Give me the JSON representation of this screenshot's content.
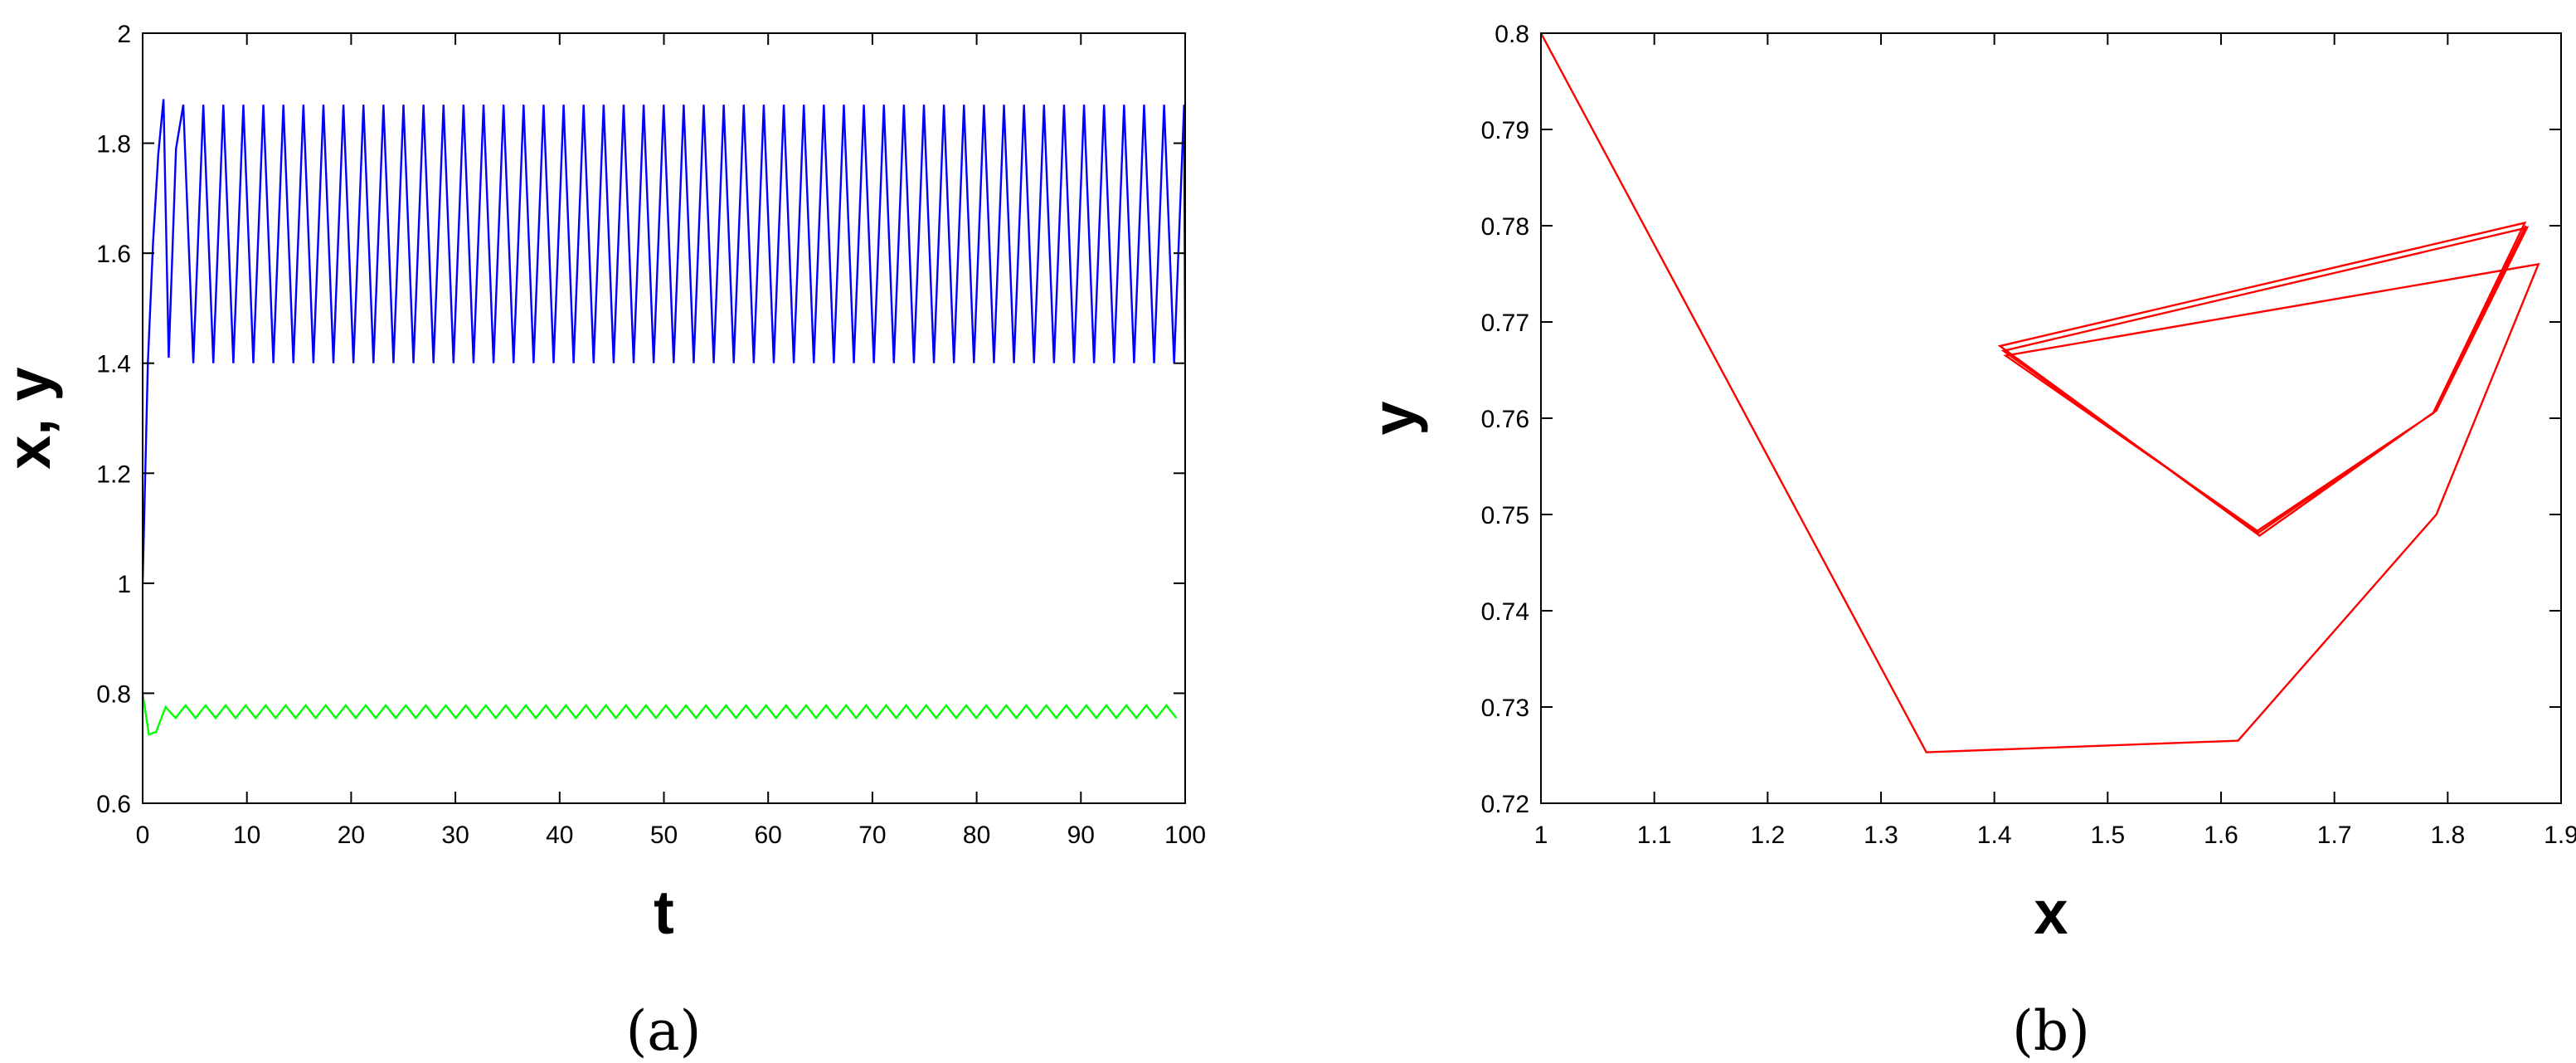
{
  "chart_data": [
    {
      "type": "line",
      "panel_label": "(a)",
      "xlabel": "t",
      "ylabel": "x, y",
      "xlim": [
        0,
        100
      ],
      "ylim": [
        0.6,
        2
      ],
      "xticks": [
        "0",
        "10",
        "20",
        "30",
        "40",
        "50",
        "60",
        "70",
        "80",
        "90",
        "100"
      ],
      "yticks": [
        "0.6",
        "0.8",
        "1",
        "1.2",
        "1.4",
        "1.6",
        "1.8",
        "2"
      ],
      "grid": false,
      "series": [
        {
          "color": "#0000ff",
          "initial": [
            [
              0,
              1.0
            ],
            [
              0.5,
              1.4
            ],
            [
              1.0,
              1.62
            ],
            [
              1.5,
              1.78
            ],
            [
              2.0,
              1.88
            ],
            [
              2.5,
              1.41
            ],
            [
              3.2,
              1.79
            ],
            [
              3.9,
              1.87
            ]
          ],
          "oscillation": {
            "t_start": 3.9,
            "t_end": 100,
            "period": 1.92,
            "min": 1.4,
            "max": 1.87
          }
        },
        {
          "color": "#00ff00",
          "initial": [
            [
              0,
              0.8
            ],
            [
              0.6,
              0.725
            ],
            [
              1.3,
              0.73
            ],
            [
              2.2,
              0.775
            ]
          ],
          "oscillation": {
            "t_start": 2.2,
            "t_end": 100,
            "period": 1.92,
            "min": 0.755,
            "max": 0.778
          }
        }
      ]
    },
    {
      "type": "line",
      "panel_label": "(b)",
      "xlabel": "x",
      "ylabel": "y",
      "xlim": [
        1,
        1.9
      ],
      "ylim": [
        0.72,
        0.8
      ],
      "xticks": [
        "1",
        "1.1",
        "1.2",
        "1.3",
        "1.4",
        "1.5",
        "1.6",
        "1.7",
        "1.8",
        "1.9"
      ],
      "yticks": [
        "0.72",
        "0.73",
        "0.74",
        "0.75",
        "0.76",
        "0.77",
        "0.78",
        "0.79",
        "0.8"
      ],
      "grid": false,
      "series": [
        {
          "color": "#ff0000",
          "points": [
            [
              1.0,
              0.8
            ],
            [
              1.34,
              0.7253
            ],
            [
              1.615,
              0.7265
            ],
            [
              1.79,
              0.75
            ],
            [
              1.88,
              0.776
            ],
            [
              1.41,
              0.7665
            ],
            [
              1.632,
              0.7483
            ],
            [
              1.787,
              0.7605
            ],
            [
              1.868,
              0.7803
            ],
            [
              1.405,
              0.7675
            ],
            [
              1.634,
              0.7478
            ],
            [
              1.79,
              0.7608
            ],
            [
              1.87,
              0.7798
            ],
            [
              1.408,
              0.767
            ],
            [
              1.633,
              0.7481
            ],
            [
              1.788,
              0.7606
            ],
            [
              1.869,
              0.78
            ]
          ]
        }
      ]
    }
  ]
}
